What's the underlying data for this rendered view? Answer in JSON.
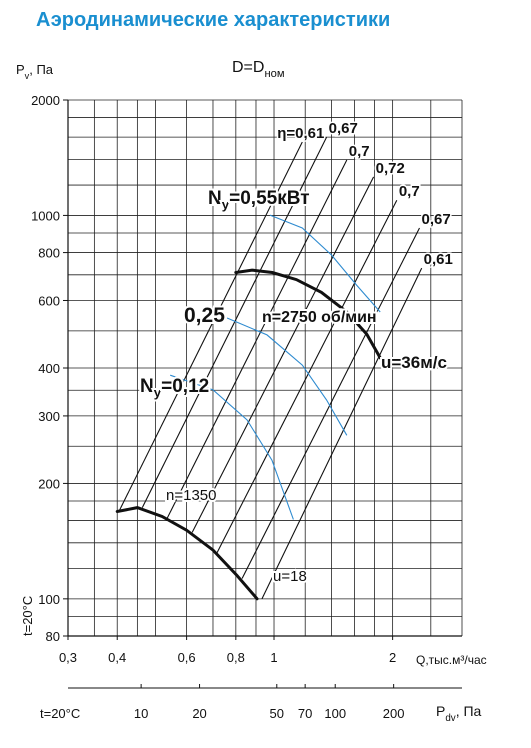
{
  "chart_data": {
    "type": "line",
    "title": "Аэродинамические характеристики",
    "subtitle": {
      "text": "D=D",
      "sub": "ном"
    },
    "y_label": {
      "text": "P",
      "sub": "v",
      "after": ", Па"
    },
    "x_label": "Q,тыс.м³/час",
    "x2_label": {
      "text": "P",
      "sub": "dv",
      "after": ", Па"
    },
    "temperature_notes": [
      "t=20°C",
      "t=20°C"
    ],
    "log_x": true,
    "log_y": true,
    "grid": true,
    "xlim": [
      0.3,
      3
    ],
    "ylim": [
      80,
      2000
    ],
    "x2lim": [
      4.2,
      450
    ],
    "xticks": [
      {
        "value": 0.3,
        "label": "0,3"
      },
      {
        "value": 0.4,
        "label": "0,4"
      },
      {
        "value": 0.6,
        "label": "0,6"
      },
      {
        "value": 0.8,
        "label": "0,8"
      },
      1,
      2
    ],
    "yticks": [
      80,
      100,
      200,
      300,
      400,
      600,
      800,
      1000,
      2000
    ],
    "x2ticks": [
      10,
      20,
      50,
      70,
      100,
      200
    ],
    "xgrid": [
      0.3,
      0.35,
      0.4,
      0.45,
      0.5,
      0.6,
      0.7,
      0.8,
      0.9,
      1,
      1.2,
      1.4,
      1.6,
      1.8,
      2,
      2.5,
      3
    ],
    "ygrid": [
      80,
      90,
      100,
      120,
      140,
      160,
      180,
      200,
      250,
      300,
      350,
      400,
      500,
      600,
      700,
      800,
      900,
      1000,
      1200,
      1400,
      1600,
      1800,
      2000
    ],
    "fan_curves": [
      {
        "label_n": "n=2750 об/мин",
        "label_u": "u=36м/с",
        "color": "#111111",
        "q": [
          0.8,
          0.88,
          0.99,
          1.14,
          1.32,
          1.53,
          1.72,
          1.86
        ],
        "p": [
          710,
          720,
          710,
          680,
          630,
          560,
          490,
          425
        ]
      },
      {
        "label_n": "n=1350",
        "label_u": "u=18",
        "color": "#111111",
        "q": [
          0.4,
          0.45,
          0.52,
          0.6,
          0.7,
          0.806,
          0.906
        ],
        "p": [
          169,
          173,
          164,
          151,
          134,
          115,
          100
        ]
      }
    ],
    "efficiency_lines": [
      {
        "label": "η=0,61",
        "color": "#111111",
        "q": [
          0.405,
          1.18
        ],
        "p": [
          170,
          1554
        ]
      },
      {
        "label": "0,67",
        "color": "#111111",
        "q": [
          0.463,
          1.36
        ],
        "p": [
          173,
          1601
        ]
      },
      {
        "label": "0,7",
        "color": "#111111",
        "q": [
          0.536,
          1.53
        ],
        "p": [
          162.5,
          1395
        ]
      },
      {
        "label": "0,72",
        "color": "#111111",
        "q": [
          0.62,
          1.79
        ],
        "p": [
          149,
          1260
        ]
      },
      {
        "label": "0,7",
        "color": "#111111",
        "q": [
          0.717,
          2.05
        ],
        "p": [
          132,
          1096
        ]
      },
      {
        "label": "0,67",
        "color": "#111111",
        "q": [
          0.83,
          2.34
        ],
        "p": [
          113,
          927
        ]
      },
      {
        "label": "0,61",
        "color": "#111111",
        "q": [
          0.932,
          2.37
        ],
        "p": [
          100,
          729
        ]
      }
    ],
    "power_curves": [
      {
        "label": {
          "text": "N",
          "sub": "y",
          "after": "=0,55кВт"
        },
        "color": "#2e8bd0",
        "q": [
          0.977,
          1.18,
          1.4,
          1.62,
          1.86
        ],
        "p": [
          1002,
          927,
          788,
          658,
          560
        ]
      },
      {
        "label": {
          "text": "0,25"
        },
        "color": "#2e8bd0",
        "q": [
          0.76,
          0.96,
          1.18,
          1.36,
          1.53
        ],
        "p": [
          540,
          488,
          407,
          330,
          267
        ]
      },
      {
        "label": {
          "text": "N",
          "sub": "y",
          "after": "=0,12"
        },
        "color": "#2e8bd0",
        "q": [
          0.545,
          0.7,
          0.854,
          0.988,
          1.12
        ],
        "p": [
          383,
          351,
          293,
          230,
          161
        ]
      }
    ]
  }
}
